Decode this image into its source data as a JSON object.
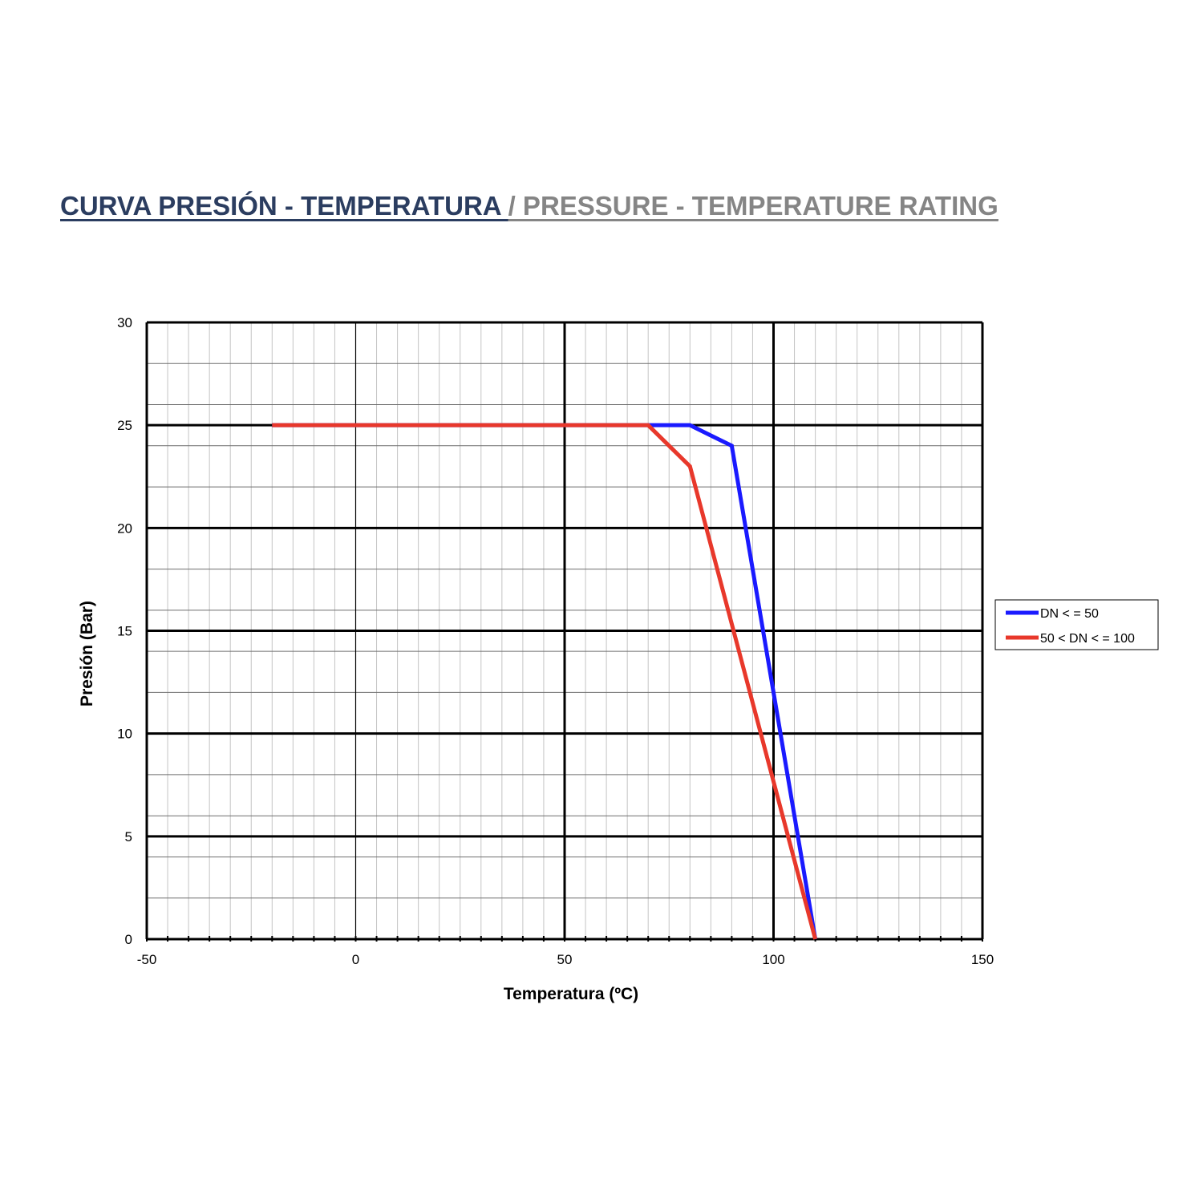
{
  "header": {
    "title_es": "CURVA PRESIÓN - TEMPERATURA ",
    "title_en": "/ PRESSURE - TEMPERATURE RATING"
  },
  "chart_data": {
    "type": "line",
    "xlabel": "Temperatura (ºC)",
    "ylabel": "Presión  (Bar)",
    "xlim": [
      -50,
      150
    ],
    "ylim": [
      0,
      30
    ],
    "x_ticks": [
      -50,
      0,
      50,
      100,
      150
    ],
    "y_ticks": [
      0,
      5,
      10,
      15,
      20,
      25,
      30
    ],
    "x_minor_step": 5,
    "y_minor_step": 2,
    "grid": true,
    "legend_position": "right",
    "series": [
      {
        "name": "DN < = 50",
        "color": "#1a1aff",
        "x": [
          -20,
          80,
          90,
          110
        ],
        "y": [
          25,
          25,
          24,
          0
        ]
      },
      {
        "name": "50 < DN < = 100",
        "color": "#e8382b",
        "x": [
          -20,
          70,
          80,
          110
        ],
        "y": [
          25,
          25,
          23,
          0
        ]
      }
    ]
  }
}
